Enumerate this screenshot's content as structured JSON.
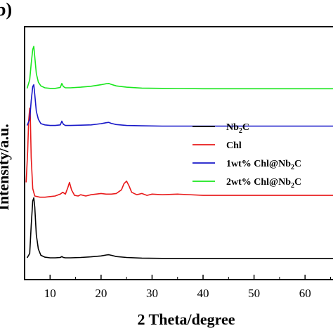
{
  "chart_data": {
    "type": "line",
    "panel_label": "b)",
    "xlabel": "2 Theta/degree",
    "ylabel": "Intensity/a.u.",
    "xlim": [
      5,
      67
    ],
    "x_ticks": [
      10,
      20,
      30,
      40,
      50,
      60
    ],
    "x_tick_labels": [
      "10",
      "20",
      "30",
      "40",
      "50",
      "60"
    ],
    "y_ticks_shown": false,
    "legend_position": "right",
    "series": [
      {
        "name": "Nb<sub>2</sub>C",
        "label_main": "Nb",
        "label_sub": "2",
        "label_tail": "C",
        "color": "#000000",
        "offset": 0,
        "baseline": 8,
        "x": [
          5.5,
          6.0,
          6.3,
          6.6,
          6.8,
          7.0,
          7.3,
          7.7,
          8.2,
          9,
          10,
          11,
          12,
          12.3,
          12.6,
          13,
          14,
          16,
          18,
          20,
          21,
          21.5,
          22,
          23,
          25,
          28,
          32,
          40,
          50,
          60,
          67
        ],
        "y": [
          8,
          15,
          60,
          100,
          105,
          90,
          45,
          22,
          12,
          9,
          8,
          8,
          8.5,
          10,
          8.5,
          8,
          8,
          8.5,
          9.5,
          11,
          12.5,
          13,
          12,
          10,
          8.5,
          7.5,
          7,
          7,
          7,
          7,
          7
        ]
      },
      {
        "name": "Chl",
        "label_main": "Chl",
        "label_sub": "",
        "label_tail": "",
        "color": "#e8191a",
        "offset": 0,
        "baseline": 0,
        "x": [
          5.3,
          5.6,
          5.8,
          6.0,
          6.1,
          6.3,
          6.6,
          7.0,
          8,
          9,
          10,
          11,
          12,
          12.5,
          13,
          13.5,
          13.8,
          14.2,
          14.8,
          15.5,
          16,
          17,
          18,
          19,
          20,
          21,
          22,
          23,
          24,
          24.5,
          25,
          25.5,
          26,
          27,
          28,
          29,
          30,
          32,
          35,
          40,
          50,
          60,
          67
        ],
        "y": [
          130,
          180,
          230,
          250,
          245,
          170,
          120,
          108,
          106,
          106,
          107,
          108,
          111,
          114,
          111,
          122,
          130,
          118,
          109,
          108,
          110,
          108,
          110,
          111,
          112,
          111,
          111,
          112,
          118,
          128,
          132,
          124,
          114,
          110,
          112,
          109,
          111,
          110,
          111,
          109,
          109,
          109,
          109
        ]
      },
      {
        "name": "1wt% Chl@Nb<sub>2</sub>C",
        "label_main": "1wt% Chl@Nb",
        "label_sub": "2",
        "label_tail": "C",
        "color": "#1717c8",
        "offset": 0,
        "baseline": 0,
        "x": [
          5.5,
          6.0,
          6.3,
          6.6,
          6.8,
          7.0,
          7.3,
          7.7,
          8.2,
          9,
          10,
          11,
          12,
          12.3,
          12.6,
          13,
          14,
          16,
          18,
          20,
          21,
          21.5,
          22,
          23,
          25,
          28,
          32,
          40,
          50,
          60,
          67
        ],
        "y": [
          222,
          232,
          262,
          285,
          288,
          272,
          245,
          232,
          225,
          223,
          222,
          222,
          223,
          229,
          224,
          222,
          222,
          222.5,
          223,
          225,
          226.5,
          227,
          225.5,
          223.5,
          222,
          221.5,
          221,
          221,
          221,
          221,
          221
        ]
      },
      {
        "name": "2wt% Chl@Nb<sub>2</sub>C",
        "label_main": "2wt% Chl@Nb",
        "label_sub": "2",
        "label_tail": "C",
        "color": "#19e61d",
        "offset": 0,
        "baseline": 0,
        "x": [
          5.5,
          6.0,
          6.3,
          6.6,
          6.8,
          7.0,
          7.3,
          7.7,
          8.2,
          9,
          10,
          11,
          12,
          12.3,
          12.6,
          13,
          14,
          16,
          18,
          20,
          21,
          21.5,
          22,
          23,
          25,
          28,
          32,
          40,
          50,
          60,
          67
        ],
        "y": [
          282,
          296,
          322,
          345,
          350,
          333,
          306,
          292,
          286,
          283,
          282,
          282,
          283.5,
          290,
          285,
          283,
          283,
          284,
          285.5,
          288,
          289.5,
          290,
          288.5,
          286,
          284,
          282.5,
          282,
          281.5,
          281.5,
          281.5,
          281.5
        ]
      }
    ]
  },
  "legend_order": [
    0,
    1,
    2,
    3
  ]
}
